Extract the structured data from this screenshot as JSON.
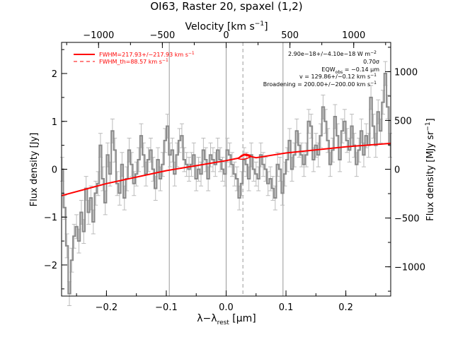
{
  "chart_data": {
    "type": "line",
    "title": "OI63, Raster 20, spaxel (1,2)",
    "xlabel": "λ−λ",
    "xlabel_sub": "rest",
    "xlabel_unit": " [μm]",
    "ylabel_left": "Flux density [Jy]",
    "ylabel_right": "Flux density [MJy sr",
    "ylabel_right_sup": "−1",
    "ylabel_right_end": "]",
    "top_axis_label": "Velocity [km s",
    "top_axis_label_sup": "−1",
    "top_axis_label_end": "]",
    "xlim": [
      -0.275,
      0.275
    ],
    "ylim": [
      -2.65,
      2.65
    ],
    "right_ylim": [
      -1300,
      1300
    ],
    "velocity_lim": [
      -1290,
      1290
    ],
    "x_ticks": [
      -0.2,
      -0.1,
      0.0,
      0.1,
      0.2
    ],
    "x_tick_labels": [
      "−0.2",
      "−0.1",
      "0.0",
      "0.1",
      "0.2"
    ],
    "y_ticks": [
      -2,
      -1,
      0,
      1,
      2
    ],
    "y_tick_labels": [
      "−2",
      "−1",
      "0",
      "1",
      "2"
    ],
    "right_ticks": [
      -1000,
      -500,
      0,
      500,
      1000
    ],
    "right_tick_labels": [
      "−1000",
      "−500",
      "0",
      "500",
      "1000"
    ],
    "velocity_ticks": [
      -1000,
      -500,
      0,
      500,
      1000
    ],
    "velocity_tick_labels": [
      "−1000",
      "−500",
      "0",
      "500",
      "1000"
    ],
    "vertical_lines": [
      -0.095,
      0.0,
      0.095
    ],
    "dashed_line_x": 0.028,
    "legend": {
      "placement": "top-left",
      "entries": [
        {
          "label": "FWHM=217.93+/−217.93 km s",
          "sup": "−1",
          "style": "solid",
          "color": "#ff0000"
        },
        {
          "label": "FWHM_th=88.57 km s",
          "sup": "−1",
          "style": "dashed",
          "color": "#ff0000"
        }
      ]
    },
    "annotations": [
      {
        "text": "2.90e−18+/−4.10e−18 W m",
        "sup": "−2"
      },
      {
        "text": "0.70σ"
      },
      {
        "text": "EQW",
        "sub": "obs",
        "tail": " = −0.14 μm"
      },
      {
        "text": "v = 129.86+/−0.12 km s",
        "sup": "−1"
      },
      {
        "text": "Broadening = 200.00+/−200.00 km s",
        "sup": "−1"
      }
    ],
    "colors": {
      "data": "#8a8a8a",
      "fit": "#ff0000",
      "errorbar": "#bbbbbb",
      "guide": "#999999"
    },
    "series": [
      {
        "x": [
          -0.274,
          -0.27,
          -0.266,
          -0.262,
          -0.258,
          -0.254,
          -0.25,
          -0.246,
          -0.242,
          -0.238,
          -0.234,
          -0.23,
          -0.226,
          -0.222,
          -0.218,
          -0.214,
          -0.21,
          -0.206,
          -0.202,
          -0.198,
          -0.194,
          -0.19,
          -0.186,
          -0.182,
          -0.178,
          -0.174,
          -0.17,
          -0.166,
          -0.162,
          -0.158,
          -0.154,
          -0.15,
          -0.146,
          -0.142,
          -0.138,
          -0.134,
          -0.13,
          -0.126,
          -0.122,
          -0.118,
          -0.114,
          -0.11,
          -0.106,
          -0.102,
          -0.098,
          -0.094,
          -0.09,
          -0.086,
          -0.082,
          -0.078,
          -0.074,
          -0.07,
          -0.066,
          -0.062,
          -0.058,
          -0.054,
          -0.05,
          -0.046,
          -0.042,
          -0.038,
          -0.034,
          -0.03,
          -0.026,
          -0.022,
          -0.018,
          -0.014,
          -0.01,
          -0.006,
          -0.002,
          0.002,
          0.006,
          0.01,
          0.014,
          0.018,
          0.022,
          0.026,
          0.03,
          0.034,
          0.038,
          0.042,
          0.046,
          0.05,
          0.054,
          0.058,
          0.062,
          0.066,
          0.07,
          0.074,
          0.078,
          0.082,
          0.086,
          0.09,
          0.094,
          0.098,
          0.102,
          0.106,
          0.11,
          0.114,
          0.118,
          0.122,
          0.126,
          0.13,
          0.134,
          0.138,
          0.142,
          0.146,
          0.15,
          0.154,
          0.158,
          0.162,
          0.166,
          0.17,
          0.174,
          0.178,
          0.182,
          0.186,
          0.19,
          0.194,
          0.198,
          0.202,
          0.206,
          0.21,
          0.214,
          0.218,
          0.222,
          0.226,
          0.23,
          0.234,
          0.238,
          0.242,
          0.246,
          0.25,
          0.254,
          0.258,
          0.262,
          0.266,
          0.27,
          0.274
        ],
        "values": [
          0.0,
          -0.8,
          -1.6,
          -2.6,
          -1.9,
          -1.4,
          -1.2,
          -1.5,
          -0.9,
          -1.3,
          -0.4,
          -0.9,
          -0.6,
          -1.1,
          -0.5,
          -0.3,
          0.5,
          -0.2,
          -0.7,
          0.3,
          -0.1,
          0.8,
          0.4,
          -0.3,
          -0.5,
          0.1,
          -0.6,
          -0.2,
          0.4,
          0.1,
          -0.3,
          -0.1,
          0.2,
          0.7,
          0.3,
          -0.1,
          0.2,
          0.4,
          0.0,
          -0.4,
          0.2,
          -0.2,
          0.1,
          0.6,
          0.9,
          0.3,
          0.4,
          -0.1,
          0.3,
          0.6,
          0.7,
          0.2,
          0.1,
          0.0,
          0.1,
          0.3,
          -0.2,
          0.0,
          -0.1,
          0.4,
          0.2,
          -0.2,
          0.3,
          0.2,
          0.1,
          0.4,
          0.2,
          0.0,
          -0.1,
          0.4,
          0.3,
          0.1,
          -0.1,
          -0.2,
          -0.6,
          -0.3,
          0.2,
          0.1,
          -0.2,
          0.3,
          0.0,
          -0.1,
          -0.2,
          0.3,
          0.1,
          0.0,
          -0.3,
          -0.2,
          -0.4,
          -0.6,
          0.1,
          0.0,
          -0.5,
          -0.1,
          0.2,
          0.6,
          0.0,
          0.3,
          0.8,
          0.5,
          0.3,
          0.1,
          0.3,
          1.0,
          0.9,
          0.2,
          0.5,
          0.3,
          0.7,
          1.3,
          1.0,
          0.6,
          0.1,
          0.4,
          1.1,
          0.7,
          0.2,
          0.8,
          1.0,
          0.6,
          0.4,
          0.9,
          0.5,
          0.1,
          0.4,
          0.8,
          0.3,
          0.7,
          0.5,
          1.5,
          0.9,
          0.5,
          1.2,
          0.8,
          1.4,
          2.0,
          1.3,
          0.5
        ],
        "errors": [
          0.25
        ]
      }
    ],
    "fit": {
      "x": [
        -0.275,
        -0.2,
        -0.1,
        0.0,
        0.02,
        0.03,
        0.04,
        0.05,
        0.1,
        0.2,
        0.275
      ],
      "values": [
        -0.55,
        -0.3,
        -0.03,
        0.18,
        0.23,
        0.3,
        0.27,
        0.24,
        0.34,
        0.47,
        0.54
      ]
    }
  }
}
